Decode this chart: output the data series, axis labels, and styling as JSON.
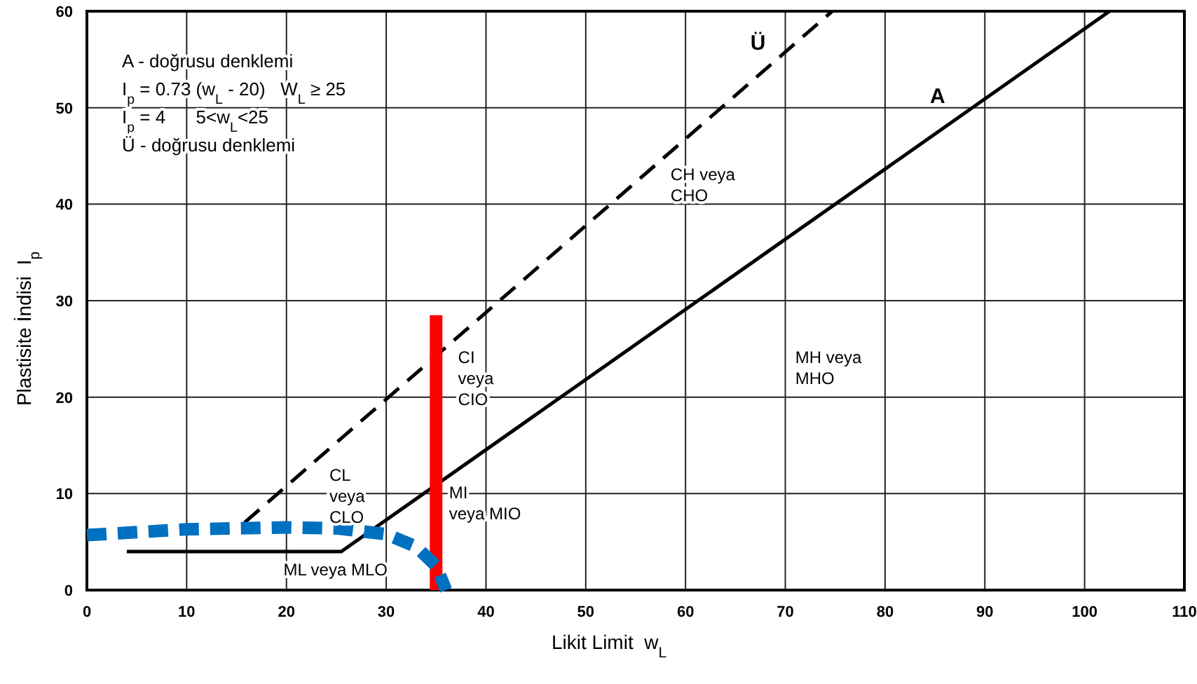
{
  "chart_data": {
    "type": "line",
    "xlabel": "Likit Limit  w$_{L}$",
    "ylabel": "Plastisite İndisi  I$_{p}$",
    "xlim": [
      0,
      110
    ],
    "xticks": [
      0,
      10,
      20,
      30,
      40,
      50,
      60,
      70,
      80,
      90,
      100,
      110
    ],
    "ylim": [
      0,
      60
    ],
    "yticks": [
      0,
      10,
      20,
      30,
      40,
      50,
      60
    ],
    "grid": true,
    "series": [
      {
        "color": "#000000",
        "line_style": "solid",
        "x": [
          4,
          25.5,
          102.5
        ],
        "values": [
          4,
          4,
          60
        ]
      },
      {
        "color": "#000000",
        "line_style": "dashed",
        "x": [
          15.8,
          74.7
        ],
        "values": [
          7,
          60
        ]
      },
      {
        "color": "#ff0000",
        "line_style": "solid",
        "x": [
          35,
          35
        ],
        "values": [
          0,
          28.5
        ]
      },
      {
        "color": "#0070c0",
        "line_style": "dashed",
        "x": [
          0,
          10,
          20,
          25,
          30,
          33,
          35,
          36
        ],
        "values": [
          5.7,
          6.3,
          6.5,
          6.4,
          5.8,
          4.5,
          2.5,
          0
        ]
      }
    ],
    "annotations": [
      "A - doğrusu denklemi",
      "I$_{p}$ = 0.73 (w$_{L}$ - 20)   W$_{L}$ ≥ 25",
      "I$_{p}$ = 4      5<w$_{L}$<25",
      "Ü - doğrusu denklemi",
      "Ü",
      "A",
      "CH veya\nCHO",
      "MH veya\nMHO",
      "CI\nveya\nCIO",
      "MI\nveya  MIO",
      "CL\nveya\nCLO",
      "ML veya MLO"
    ]
  }
}
